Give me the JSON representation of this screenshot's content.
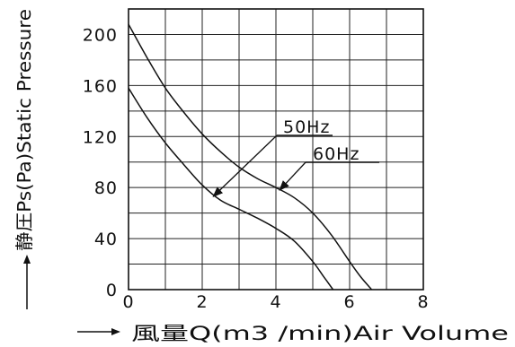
{
  "chart_data": {
    "type": "line",
    "xlabel": "風量Q(m3 /min)Air Volume",
    "ylabel": "静圧Ps(Pa)Static Pressure",
    "xlim": [
      0,
      8
    ],
    "ylim": [
      0,
      220
    ],
    "x_ticks": [
      "0",
      "2",
      "4",
      "6",
      "8"
    ],
    "y_ticks": [
      "0",
      "40",
      "80",
      "120",
      "160",
      "200"
    ],
    "grid": true,
    "series": [
      {
        "name": "50Hz",
        "points": [
          [
            0,
            158
          ],
          [
            0.5,
            135
          ],
          [
            1,
            115
          ],
          [
            1.5,
            98
          ],
          [
            2,
            82
          ],
          [
            2.5,
            70
          ],
          [
            3,
            63
          ],
          [
            3.5,
            56
          ],
          [
            4,
            48
          ],
          [
            4.5,
            38
          ],
          [
            5,
            22
          ],
          [
            5.3,
            10
          ],
          [
            5.55,
            0
          ]
        ]
      },
      {
        "name": "60Hz",
        "points": [
          [
            0,
            208
          ],
          [
            0.5,
            182
          ],
          [
            1,
            158
          ],
          [
            1.5,
            139
          ],
          [
            2,
            122
          ],
          [
            2.5,
            108
          ],
          [
            3,
            96
          ],
          [
            3.5,
            87
          ],
          [
            4,
            80
          ],
          [
            4.5,
            72
          ],
          [
            5,
            60
          ],
          [
            5.5,
            43
          ],
          [
            6,
            22
          ],
          [
            6.3,
            10
          ],
          [
            6.6,
            0
          ]
        ]
      }
    ],
    "annotations": [
      {
        "label": "50Hz",
        "target_series": "50Hz",
        "target_point": [
          2.3,
          73
        ]
      },
      {
        "label": "60Hz",
        "target_series": "60Hz",
        "target_point": [
          4.1,
          78
        ]
      }
    ]
  }
}
